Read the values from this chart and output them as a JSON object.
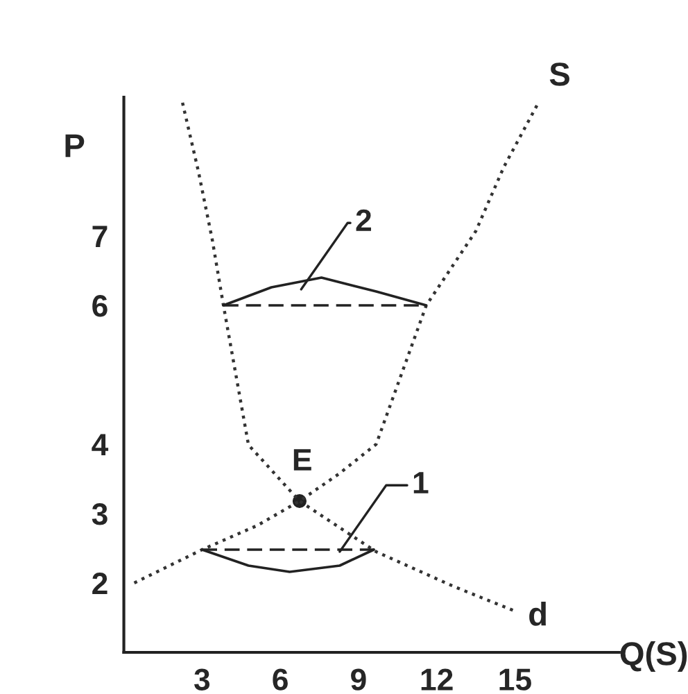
{
  "chart_data": {
    "type": "line",
    "xlabel": "Q(S)",
    "ylabel": "P",
    "xlim": [
      0,
      19
    ],
    "ylim": [
      1,
      9
    ],
    "xticks": [
      3,
      6,
      9,
      12,
      15
    ],
    "yticks": [
      2,
      3,
      4,
      6,
      7
    ],
    "grid": false,
    "legend": false,
    "series": [
      {
        "name": "S",
        "color": "#333333",
        "line_style": "dotted",
        "x": [
          0.4,
          3,
          5.13,
          6.74,
          8.28,
          9.68,
          11.6,
          13.5,
          14.57,
          15.9
        ],
        "values": [
          2.0,
          2.48,
          2.83,
          3.18,
          3.58,
          4.0,
          6.0,
          7.07,
          7.99,
          8.92
        ]
      },
      {
        "name": "d",
        "color": "#333333",
        "line_style": "dotted",
        "x": [
          2.25,
          2.86,
          3.39,
          3.82,
          4.78,
          6.74,
          9.68,
          12.65,
          15.1
        ],
        "values": [
          8.92,
          7.93,
          6.95,
          6.0,
          3.99,
          3.18,
          2.45,
          1.95,
          1.58
        ]
      },
      {
        "color": "#222222",
        "line_style": "solid",
        "x": [
          3.82,
          5.66,
          7.58,
          9.68,
          11.6
        ],
        "values": [
          6.0,
          6.26,
          6.4,
          6.2,
          6.0
        ]
      },
      {
        "color": "#222222",
        "line_style": "dashed",
        "x": [
          3.82,
          11.6
        ],
        "values": [
          6.0,
          6.0
        ]
      },
      {
        "color": "#222222",
        "line_style": "solid",
        "x": [
          3,
          4.78,
          6.36,
          8.28,
          9.59
        ],
        "values": [
          2.48,
          2.25,
          2.16,
          2.25,
          2.48
        ]
      },
      {
        "color": "#222222",
        "line_style": "dashed",
        "x": [
          3,
          9.59
        ],
        "values": [
          2.48,
          2.48
        ]
      },
      {
        "type": "scatter",
        "color": "#222222",
        "marker": "circle",
        "x": [
          6.74
        ],
        "values": [
          3.18
        ]
      }
    ],
    "annotations": [
      {
        "text": "E",
        "x": 6.74,
        "y": 3.18
      },
      {
        "text": "2",
        "x": 6.8,
        "y": 6.23
      },
      {
        "text": "1",
        "x": 8.28,
        "y": 2.45
      }
    ]
  }
}
